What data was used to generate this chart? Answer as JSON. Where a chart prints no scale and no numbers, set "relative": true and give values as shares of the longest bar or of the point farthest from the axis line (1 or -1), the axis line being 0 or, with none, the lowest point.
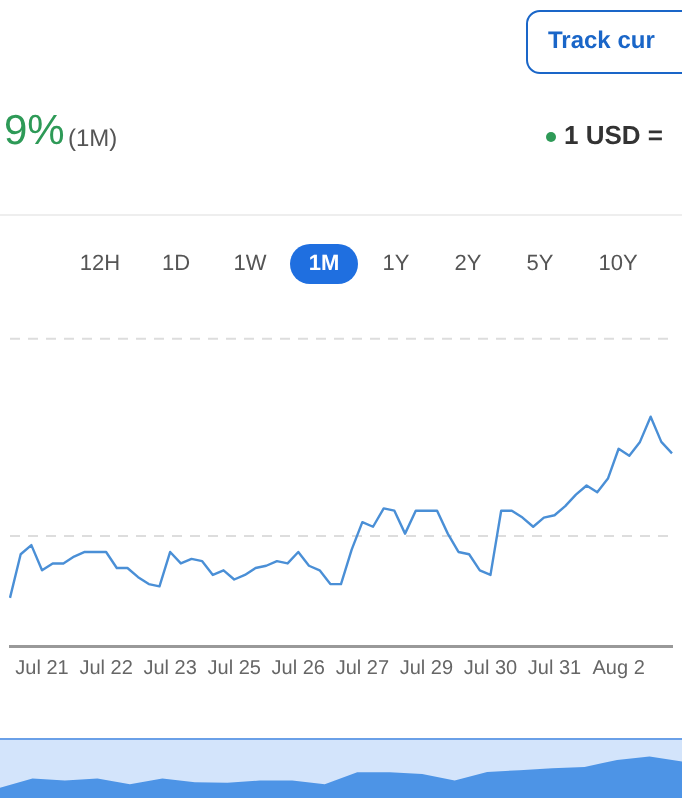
{
  "chart_data": [
    {
      "type": "line",
      "relative": true,
      "marker": "none",
      "annotations": [
        "Track cur",
        "9%",
        "(1M)",
        "1 USD =",
        "12H",
        "1D",
        "1W",
        "1M",
        "1Y",
        "2Y",
        "5Y",
        "10Y"
      ],
      "categories": [
        null,
        null,
        null,
        "Jul 21",
        null,
        null,
        null,
        null,
        null,
        "Jul 22",
        null,
        null,
        null,
        null,
        null,
        "Jul 23",
        null,
        null,
        null,
        null,
        null,
        "Jul 25",
        null,
        null,
        null,
        null,
        null,
        "Jul 26",
        null,
        null,
        null,
        null,
        null,
        "Jul 27",
        null,
        null,
        null,
        null,
        null,
        "Jul 29",
        null,
        null,
        null,
        null,
        null,
        "Jul 30",
        null,
        null,
        null,
        null,
        null,
        "Jul 31",
        null,
        null,
        null,
        null,
        null,
        "Aug 2",
        null,
        null,
        null,
        null,
        null
      ],
      "color": "#4a8fd6",
      "values": [
        0.21,
        0.4,
        0.44,
        0.33,
        0.36,
        0.36,
        0.39,
        0.41,
        0.41,
        0.41,
        0.34,
        0.34,
        0.3,
        0.27,
        0.26,
        0.41,
        0.36,
        0.38,
        0.37,
        0.31,
        0.33,
        0.29,
        0.31,
        0.34,
        0.35,
        0.37,
        0.36,
        0.41,
        0.35,
        0.33,
        0.27,
        0.27,
        0.42,
        0.54,
        0.52,
        0.6,
        0.59,
        0.49,
        0.59,
        0.59,
        0.59,
        0.49,
        0.41,
        0.4,
        0.33,
        0.31,
        0.59,
        0.59,
        0.56,
        0.52,
        0.56,
        0.57,
        0.61,
        0.66,
        0.7,
        0.67,
        0.73,
        0.86,
        0.83,
        0.89,
        1,
        0.89,
        0.84
      ],
      "ref_lines": [
        {
          "axis": "y",
          "value": 1.34,
          "color": "#dddddd",
          "line_style": "dashed"
        },
        {
          "axis": "y",
          "value": 0.48,
          "color": "#dddddd",
          "line_style": "dashed"
        }
      ]
    },
    {
      "type": "area",
      "relative": true,
      "color": "#4d94e6",
      "categories": [
        null,
        null,
        null,
        null,
        null,
        null,
        null,
        null,
        null,
        null,
        null,
        null,
        null,
        null,
        null,
        null,
        null,
        null,
        null,
        null,
        null,
        null
      ],
      "values": [
        0.25,
        0.47,
        0.42,
        0.47,
        0.33,
        0.47,
        0.38,
        0.37,
        0.42,
        0.42,
        0.33,
        0.62,
        0.62,
        0.58,
        0.42,
        0.63,
        0.67,
        0.72,
        0.75,
        0.92,
        1,
        0.88
      ]
    }
  ]
}
